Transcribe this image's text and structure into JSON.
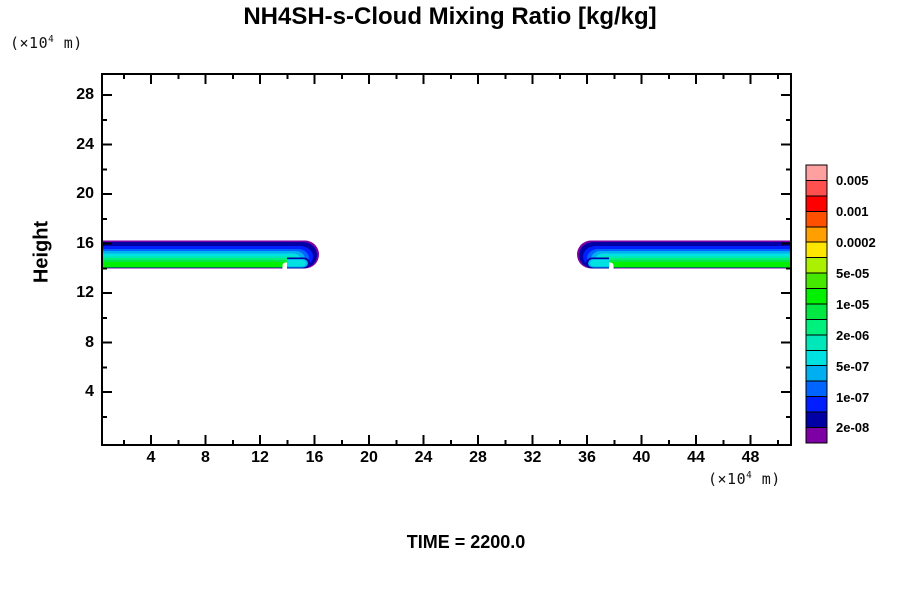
{
  "title": "NH4SH-s-Cloud Mixing Ratio [kg/kg]",
  "time_label": "TIME = 2200.0",
  "y_axis": {
    "label": "Height",
    "unit_prefix": "(×10",
    "unit_exponent": "4",
    "unit_suffix": " m)",
    "tick_labels": [
      "4",
      "8",
      "12",
      "16",
      "20",
      "24",
      "28"
    ]
  },
  "x_axis": {
    "unit_prefix": "(×10",
    "unit_exponent": "4",
    "unit_suffix": " m)",
    "tick_labels": [
      "4",
      "8",
      "12",
      "16",
      "20",
      "24",
      "28",
      "32",
      "36",
      "40",
      "44",
      "48"
    ]
  },
  "colorbar": {
    "tick_labels": [
      "0.005",
      "0.001",
      "0.0002",
      "5e-05",
      "1e-05",
      "2e-06",
      "5e-07",
      "1e-07",
      "2e-08"
    ],
    "cell_colors": [
      "#FFA0A0",
      "#FF5050",
      "#FF0000",
      "#FF5000",
      "#FFA000",
      "#FFE600",
      "#AAF000",
      "#46E800",
      "#00F000",
      "#00E841",
      "#00F07D",
      "#00E8B9",
      "#00E1E1",
      "#00AFF0",
      "#0064FF",
      "#001EFF",
      "#0000A5",
      "#7D00A5"
    ]
  },
  "frame_color": "#000000",
  "chart_data": {
    "type": "filled_contour",
    "title": "NH4SH-s-Cloud Mixing Ratio [kg/kg]",
    "xlabel": "(×10^4 m)",
    "ylabel": "Height (×10^4 m)",
    "time": 2200.0,
    "x_ticks": [
      4,
      8,
      12,
      16,
      20,
      24,
      28,
      32,
      36,
      40,
      44,
      48
    ],
    "y_ticks": [
      4,
      8,
      12,
      16,
      20,
      24,
      28
    ],
    "x_range": [
      0.4,
      51.0
    ],
    "y_range": [
      0.0,
      29.7
    ],
    "minor_tick_interval": 2,
    "grid": false,
    "legend_position": "right colorbar",
    "contour_levels_kg_per_kg": [
      2e-08,
      1e-07,
      5e-07,
      2e-06,
      1e-05,
      5e-05,
      0.0002,
      0.001,
      0.005
    ],
    "bands": [
      {
        "name": "left cloud band",
        "x_extent": [
          0.4,
          16.3
        ],
        "y_extent": [
          14.0,
          16.2
        ],
        "description": "Thin horizontal cloud layer attached to left axis; mixing ratio increases downward from ~2e-08 kg/kg (purple/navy top edge) through blue and cyan to ~1e-05 kg/kg (green) at the sharp cloud base; rounded nose at x≈16 with small cyan lobe and white notch at its underside."
      },
      {
        "name": "right cloud band",
        "x_extent": [
          35.3,
          51.0
        ],
        "y_extent": [
          14.0,
          16.2
        ],
        "description": "Mirror image of left band, attached to right axis; rounded nose at x≈35 with small cyan lobe and white notch at its underside; same downward-increasing value stratification."
      }
    ]
  }
}
